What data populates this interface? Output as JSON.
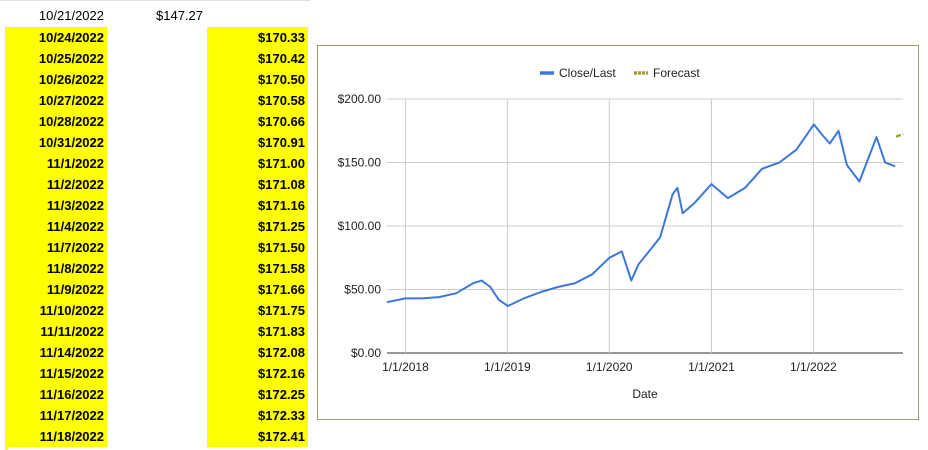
{
  "sheet": {
    "header_row": {
      "date": "10/21/2022",
      "close": "$147.27"
    },
    "rows": [
      {
        "date": "10/24/2022",
        "forecast": "$170.33"
      },
      {
        "date": "10/25/2022",
        "forecast": "$170.42"
      },
      {
        "date": "10/26/2022",
        "forecast": "$170.50"
      },
      {
        "date": "10/27/2022",
        "forecast": "$170.58"
      },
      {
        "date": "10/28/2022",
        "forecast": "$170.66"
      },
      {
        "date": "10/31/2022",
        "forecast": "$170.91"
      },
      {
        "date": "11/1/2022",
        "forecast": "$171.00"
      },
      {
        "date": "11/2/2022",
        "forecast": "$171.08"
      },
      {
        "date": "11/3/2022",
        "forecast": "$171.16"
      },
      {
        "date": "11/4/2022",
        "forecast": "$171.25"
      },
      {
        "date": "11/7/2022",
        "forecast": "$171.50"
      },
      {
        "date": "11/8/2022",
        "forecast": "$171.58"
      },
      {
        "date": "11/9/2022",
        "forecast": "$171.66"
      },
      {
        "date": "11/10/2022",
        "forecast": "$171.75"
      },
      {
        "date": "11/11/2022",
        "forecast": "$171.83"
      },
      {
        "date": "11/14/2022",
        "forecast": "$172.08"
      },
      {
        "date": "11/15/2022",
        "forecast": "$172.16"
      },
      {
        "date": "11/16/2022",
        "forecast": "$172.25"
      },
      {
        "date": "11/17/2022",
        "forecast": "$172.33"
      },
      {
        "date": "11/18/2022",
        "forecast": "$172.41"
      }
    ],
    "highlight_color": "#ffff00"
  },
  "chart_data": {
    "type": "line",
    "xlabel": "Date",
    "ylabel": "",
    "title": "",
    "x_ticks": [
      "1/1/2018",
      "1/1/2019",
      "1/1/2020",
      "1/1/2021",
      "1/1/2022"
    ],
    "y_ticks": [
      "$0.00",
      "$50.00",
      "$100.00",
      "$150.00",
      "$200.00"
    ],
    "ylim": [
      0,
      200
    ],
    "xlim": [
      "10/27/2017",
      "11/18/2022"
    ],
    "grid": true,
    "legend_position": "top",
    "series": [
      {
        "name": "Close/Last",
        "color": "#3c78d8",
        "x": [
          "10/27/2017",
          "1/1/2018",
          "3/1/2018",
          "5/1/2018",
          "7/1/2018",
          "9/1/2018",
          "10/1/2018",
          "11/1/2018",
          "12/1/2018",
          "1/3/2019",
          "3/1/2019",
          "5/1/2019",
          "7/1/2019",
          "9/1/2019",
          "11/1/2019",
          "1/1/2020",
          "2/15/2020",
          "3/20/2020",
          "4/15/2020",
          "5/15/2020",
          "7/1/2020",
          "8/15/2020",
          "9/1/2020",
          "9/20/2020",
          "11/1/2020",
          "1/1/2021",
          "3/1/2021",
          "5/1/2021",
          "7/1/2021",
          "9/1/2021",
          "11/1/2021",
          "1/3/2022",
          "2/1/2022",
          "3/1/2022",
          "4/1/2022",
          "5/1/2022",
          "6/15/2022",
          "8/15/2022",
          "9/15/2022",
          "10/21/2022"
        ],
        "values": [
          40,
          43,
          43,
          44,
          47,
          55,
          57,
          52,
          42,
          37,
          43,
          48,
          52,
          55,
          62,
          75,
          80,
          57,
          70,
          78,
          91,
          125,
          130,
          110,
          118,
          133,
          122,
          130,
          145,
          150,
          160,
          180,
          172,
          165,
          175,
          148,
          135,
          170,
          150,
          147
        ]
      },
      {
        "name": "Forecast",
        "color": "#9aa033",
        "x": [
          "10/24/2022",
          "11/18/2022"
        ],
        "values": [
          170.33,
          172.41
        ]
      }
    ]
  }
}
